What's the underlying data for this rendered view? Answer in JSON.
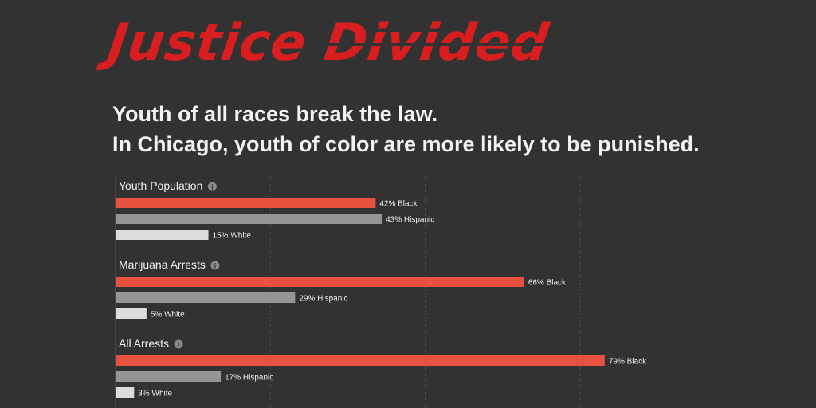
{
  "logo": {
    "word1": "Justice",
    "word2": "Divided"
  },
  "headline": {
    "line1": "Youth of all races break the law.",
    "line2": "In Chicago, youth of color are more likely to be punished."
  },
  "colors": {
    "background": "#323232",
    "black": "#e8503f",
    "hispanic": "#959595",
    "white": "#dcdcdc",
    "title_red": "#d81e1e"
  },
  "chart_data": {
    "type": "bar",
    "orientation": "horizontal",
    "grid": true,
    "groups": [
      {
        "title": "Youth Population",
        "info_icon": "info-icon",
        "bars": [
          {
            "category": "Black",
            "value": 42,
            "label": "42% Black"
          },
          {
            "category": "Hispanic",
            "value": 43,
            "label": "43% Hispanic"
          },
          {
            "category": "White",
            "value": 15,
            "label": "15% White"
          }
        ]
      },
      {
        "title": "Marijuana Arrests",
        "info_icon": "info-icon",
        "bars": [
          {
            "category": "Black",
            "value": 66,
            "label": "66% Black"
          },
          {
            "category": "Hispanic",
            "value": 29,
            "label": "29% Hispanic"
          },
          {
            "category": "White",
            "value": 5,
            "label": "5% White"
          }
        ]
      },
      {
        "title": "All Arrests",
        "info_icon": "info-icon",
        "bars": [
          {
            "category": "Black",
            "value": 79,
            "label": "79% Black"
          },
          {
            "category": "Hispanic",
            "value": 17,
            "label": "17% Hispanic"
          },
          {
            "category": "White",
            "value": 3,
            "label": "3% White"
          }
        ]
      }
    ]
  }
}
